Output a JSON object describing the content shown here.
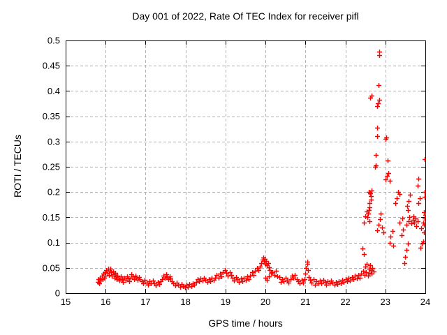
{
  "chart_data": {
    "type": "scatter",
    "title": "Day 001 of 2022, Rate Of TEC Index for receiver pifl",
    "xlabel": "GPS time / hours",
    "ylabel": "ROTI / TECUs",
    "xlim": [
      15,
      24
    ],
    "ylim": [
      0,
      0.5
    ],
    "x_ticks": [
      15,
      16,
      17,
      18,
      19,
      20,
      21,
      22,
      23,
      24
    ],
    "x_tick_labels": [
      "15",
      "16",
      "17",
      "18",
      "19",
      "20",
      "21",
      "22",
      "23",
      "24"
    ],
    "y_ticks": [
      0,
      0.05,
      0.1,
      0.15,
      0.2,
      0.25,
      0.3,
      0.35,
      0.4,
      0.45,
      0.5
    ],
    "y_tick_labels": [
      "0",
      "0.05",
      "0.1",
      "0.15",
      "0.2",
      "0.25",
      "0.3",
      "0.35",
      "0.4",
      "0.45",
      "0.5"
    ],
    "grid": true,
    "legend": "none",
    "marker": "plus",
    "marker_color": "#ff0000",
    "grid_color": "#b0b0b0",
    "border_color": "#000000",
    "series_name": "ROTI",
    "points": [
      [
        15.8,
        0.022
      ],
      [
        15.82,
        0.028
      ],
      [
        15.84,
        0.02
      ],
      [
        15.86,
        0.031
      ],
      [
        15.88,
        0.025
      ],
      [
        15.9,
        0.034
      ],
      [
        15.92,
        0.027
      ],
      [
        15.94,
        0.038
      ],
      [
        15.96,
        0.03
      ],
      [
        15.98,
        0.042
      ],
      [
        16.0,
        0.035
      ],
      [
        16.02,
        0.045
      ],
      [
        16.04,
        0.04
      ],
      [
        16.06,
        0.048
      ],
      [
        16.08,
        0.036
      ],
      [
        16.1,
        0.044
      ],
      [
        16.12,
        0.049
      ],
      [
        16.14,
        0.041
      ],
      [
        16.16,
        0.035
      ],
      [
        16.18,
        0.043
      ],
      [
        16.2,
        0.037
      ],
      [
        16.22,
        0.03
      ],
      [
        16.24,
        0.04
      ],
      [
        16.26,
        0.033
      ],
      [
        16.28,
        0.027
      ],
      [
        16.3,
        0.035
      ],
      [
        16.32,
        0.03
      ],
      [
        16.35,
        0.025
      ],
      [
        16.38,
        0.033
      ],
      [
        16.41,
        0.028
      ],
      [
        16.44,
        0.022
      ],
      [
        16.47,
        0.03
      ],
      [
        16.5,
        0.026
      ],
      [
        16.53,
        0.033
      ],
      [
        16.56,
        0.029
      ],
      [
        16.59,
        0.024
      ],
      [
        16.62,
        0.031
      ],
      [
        16.65,
        0.037
      ],
      [
        16.68,
        0.033
      ],
      [
        16.71,
        0.028
      ],
      [
        16.74,
        0.035
      ],
      [
        16.77,
        0.03
      ],
      [
        16.8,
        0.026
      ],
      [
        16.83,
        0.032
      ],
      [
        16.86,
        0.027
      ],
      [
        16.9,
        0.023
      ],
      [
        16.94,
        0.02
      ],
      [
        16.98,
        0.026
      ],
      [
        17.02,
        0.021
      ],
      [
        17.06,
        0.016
      ],
      [
        17.1,
        0.024
      ],
      [
        17.14,
        0.019
      ],
      [
        17.18,
        0.025
      ],
      [
        17.22,
        0.02
      ],
      [
        17.26,
        0.015
      ],
      [
        17.3,
        0.022
      ],
      [
        17.34,
        0.018
      ],
      [
        17.38,
        0.024
      ],
      [
        17.42,
        0.028
      ],
      [
        17.45,
        0.034
      ],
      [
        17.48,
        0.03
      ],
      [
        17.51,
        0.037
      ],
      [
        17.54,
        0.032
      ],
      [
        17.57,
        0.027
      ],
      [
        17.6,
        0.033
      ],
      [
        17.63,
        0.029
      ],
      [
        17.66,
        0.024
      ],
      [
        17.7,
        0.019
      ],
      [
        17.74,
        0.015
      ],
      [
        17.78,
        0.021
      ],
      [
        17.82,
        0.016
      ],
      [
        17.86,
        0.012
      ],
      [
        17.9,
        0.018
      ],
      [
        17.94,
        0.014
      ],
      [
        17.98,
        0.011
      ],
      [
        18.02,
        0.016
      ],
      [
        18.06,
        0.012
      ],
      [
        18.1,
        0.018
      ],
      [
        18.14,
        0.014
      ],
      [
        18.18,
        0.02
      ],
      [
        18.22,
        0.016
      ],
      [
        18.26,
        0.022
      ],
      [
        18.3,
        0.027
      ],
      [
        18.34,
        0.023
      ],
      [
        18.38,
        0.029
      ],
      [
        18.42,
        0.025
      ],
      [
        18.46,
        0.031
      ],
      [
        18.5,
        0.026
      ],
      [
        18.54,
        0.022
      ],
      [
        18.58,
        0.028
      ],
      [
        18.62,
        0.024
      ],
      [
        18.66,
        0.03
      ],
      [
        18.7,
        0.026
      ],
      [
        18.74,
        0.031
      ],
      [
        18.78,
        0.036
      ],
      [
        18.82,
        0.03
      ],
      [
        18.86,
        0.038
      ],
      [
        18.9,
        0.033
      ],
      [
        18.94,
        0.041
      ],
      [
        18.98,
        0.046
      ],
      [
        19.02,
        0.04
      ],
      [
        19.06,
        0.035
      ],
      [
        19.1,
        0.042
      ],
      [
        19.14,
        0.036
      ],
      [
        19.18,
        0.03
      ],
      [
        19.22,
        0.025
      ],
      [
        19.26,
        0.032
      ],
      [
        19.3,
        0.027
      ],
      [
        19.34,
        0.022
      ],
      [
        19.38,
        0.029
      ],
      [
        19.42,
        0.024
      ],
      [
        19.46,
        0.031
      ],
      [
        19.5,
        0.026
      ],
      [
        19.54,
        0.033
      ],
      [
        19.58,
        0.028
      ],
      [
        19.62,
        0.035
      ],
      [
        19.66,
        0.041
      ],
      [
        19.7,
        0.036
      ],
      [
        19.74,
        0.044
      ],
      [
        19.78,
        0.05
      ],
      [
        19.82,
        0.045
      ],
      [
        19.86,
        0.053
      ],
      [
        19.9,
        0.06
      ],
      [
        19.92,
        0.066
      ],
      [
        19.94,
        0.071
      ],
      [
        19.96,
        0.063
      ],
      [
        19.98,
        0.068
      ],
      [
        20.0,
        0.058
      ],
      [
        20.02,
        0.064
      ],
      [
        20.04,
        0.055
      ],
      [
        20.06,
        0.06
      ],
      [
        20.08,
        0.051
      ],
      [
        20.1,
        0.046
      ],
      [
        20.0,
        0.03
      ],
      [
        20.04,
        0.026
      ],
      [
        20.08,
        0.033
      ],
      [
        20.14,
        0.04
      ],
      [
        20.18,
        0.042
      ],
      [
        20.22,
        0.036
      ],
      [
        20.26,
        0.044
      ],
      [
        20.3,
        0.033
      ],
      [
        20.34,
        0.032
      ],
      [
        20.38,
        0.022
      ],
      [
        20.42,
        0.028
      ],
      [
        20.46,
        0.024
      ],
      [
        20.5,
        0.03
      ],
      [
        20.54,
        0.025
      ],
      [
        20.58,
        0.021
      ],
      [
        20.62,
        0.028
      ],
      [
        20.66,
        0.034
      ],
      [
        20.7,
        0.03
      ],
      [
        20.74,
        0.036
      ],
      [
        20.78,
        0.027
      ],
      [
        20.82,
        0.024
      ],
      [
        20.86,
        0.019
      ],
      [
        20.9,
        0.026
      ],
      [
        20.94,
        0.021
      ],
      [
        20.98,
        0.028
      ],
      [
        21.0,
        0.038
      ],
      [
        21.02,
        0.05
      ],
      [
        21.04,
        0.058
      ],
      [
        21.05,
        0.062
      ],
      [
        21.06,
        0.045
      ],
      [
        21.08,
        0.032
      ],
      [
        21.12,
        0.026
      ],
      [
        21.16,
        0.021
      ],
      [
        21.2,
        0.027
      ],
      [
        21.24,
        0.017
      ],
      [
        21.28,
        0.023
      ],
      [
        21.32,
        0.019
      ],
      [
        21.36,
        0.025
      ],
      [
        21.4,
        0.02
      ],
      [
        21.44,
        0.026
      ],
      [
        21.48,
        0.022
      ],
      [
        21.52,
        0.017
      ],
      [
        21.56,
        0.023
      ],
      [
        21.6,
        0.019
      ],
      [
        21.64,
        0.025
      ],
      [
        21.68,
        0.021
      ],
      [
        21.72,
        0.016
      ],
      [
        21.76,
        0.022
      ],
      [
        21.8,
        0.018
      ],
      [
        21.84,
        0.024
      ],
      [
        21.88,
        0.02
      ],
      [
        21.92,
        0.026
      ],
      [
        21.96,
        0.022
      ],
      [
        22.0,
        0.028
      ],
      [
        22.04,
        0.023
      ],
      [
        22.08,
        0.03
      ],
      [
        22.12,
        0.025
      ],
      [
        22.16,
        0.032
      ],
      [
        22.2,
        0.027
      ],
      [
        22.24,
        0.034
      ],
      [
        22.28,
        0.029
      ],
      [
        22.32,
        0.036
      ],
      [
        22.36,
        0.031
      ],
      [
        22.4,
        0.038
      ],
      [
        22.43,
        0.088
      ],
      [
        22.44,
        0.044
      ],
      [
        22.46,
        0.078
      ],
      [
        22.48,
        0.036
      ],
      [
        22.5,
        0.052
      ],
      [
        22.52,
        0.042
      ],
      [
        22.54,
        0.058
      ],
      [
        22.56,
        0.035
      ],
      [
        22.58,
        0.048
      ],
      [
        22.6,
        0.04
      ],
      [
        22.62,
        0.055
      ],
      [
        22.64,
        0.046
      ],
      [
        22.66,
        0.038
      ],
      [
        22.68,
        0.05
      ],
      [
        22.7,
        0.043
      ],
      [
        22.47,
        0.14
      ],
      [
        22.5,
        0.152
      ],
      [
        22.53,
        0.162
      ],
      [
        22.55,
        0.15
      ],
      [
        22.57,
        0.158
      ],
      [
        22.59,
        0.165
      ],
      [
        22.6,
        0.142
      ],
      [
        22.58,
        0.2
      ],
      [
        22.62,
        0.198
      ],
      [
        22.66,
        0.203
      ],
      [
        22.6,
        0.17
      ],
      [
        22.61,
        0.178
      ],
      [
        22.63,
        0.185
      ],
      [
        22.64,
        0.192
      ],
      [
        22.62,
        0.387
      ],
      [
        22.65,
        0.391
      ],
      [
        22.74,
        0.25
      ],
      [
        22.76,
        0.253
      ],
      [
        22.76,
        0.274
      ],
      [
        22.79,
        0.327
      ],
      [
        22.79,
        0.311
      ],
      [
        22.8,
        0.37
      ],
      [
        22.82,
        0.376
      ],
      [
        22.84,
        0.382
      ],
      [
        22.83,
        0.412
      ],
      [
        22.84,
        0.471
      ],
      [
        22.85,
        0.478
      ],
      [
        22.8,
        0.125
      ],
      [
        22.83,
        0.135
      ],
      [
        22.86,
        0.147
      ],
      [
        22.89,
        0.158
      ],
      [
        22.92,
        0.13
      ],
      [
        22.95,
        0.12
      ],
      [
        23.0,
        0.305
      ],
      [
        23.03,
        0.308
      ],
      [
        23.05,
        0.262
      ],
      [
        23.0,
        0.225
      ],
      [
        23.04,
        0.232
      ],
      [
        23.08,
        0.238
      ],
      [
        23.1,
        0.222
      ],
      [
        23.1,
        0.1
      ],
      [
        23.13,
        0.112
      ],
      [
        23.17,
        0.123
      ],
      [
        23.2,
        0.094
      ],
      [
        23.25,
        0.178
      ],
      [
        23.28,
        0.188
      ],
      [
        23.32,
        0.2
      ],
      [
        23.35,
        0.196
      ],
      [
        23.4,
        0.115
      ],
      [
        23.44,
        0.126
      ],
      [
        23.48,
        0.06
      ],
      [
        23.5,
        0.072
      ],
      [
        23.53,
        0.085
      ],
      [
        23.56,
        0.098
      ],
      [
        23.55,
        0.172
      ],
      [
        23.58,
        0.183
      ],
      [
        23.62,
        0.195
      ],
      [
        23.57,
        0.165
      ],
      [
        23.35,
        0.14
      ],
      [
        23.42,
        0.148
      ],
      [
        23.52,
        0.135
      ],
      [
        23.58,
        0.142
      ],
      [
        23.6,
        0.15
      ],
      [
        23.65,
        0.138
      ],
      [
        23.68,
        0.145
      ],
      [
        23.7,
        0.152
      ],
      [
        23.72,
        0.14
      ],
      [
        23.75,
        0.148
      ],
      [
        23.78,
        0.133
      ],
      [
        23.8,
        0.142
      ],
      [
        23.8,
        0.213
      ],
      [
        23.83,
        0.226
      ],
      [
        23.82,
        0.178
      ],
      [
        23.86,
        0.188
      ],
      [
        23.88,
        0.09
      ],
      [
        23.92,
        0.098
      ],
      [
        23.94,
        0.102
      ],
      [
        23.98,
        0.265
      ],
      [
        23.96,
        0.135
      ],
      [
        23.98,
        0.148
      ],
      [
        23.99,
        0.19
      ],
      [
        24.0,
        0.155
      ],
      [
        23.9,
        0.128
      ],
      [
        23.94,
        0.14
      ],
      [
        23.96,
        0.12
      ],
      [
        23.99,
        0.2
      ],
      [
        23.97,
        0.16
      ]
    ]
  }
}
